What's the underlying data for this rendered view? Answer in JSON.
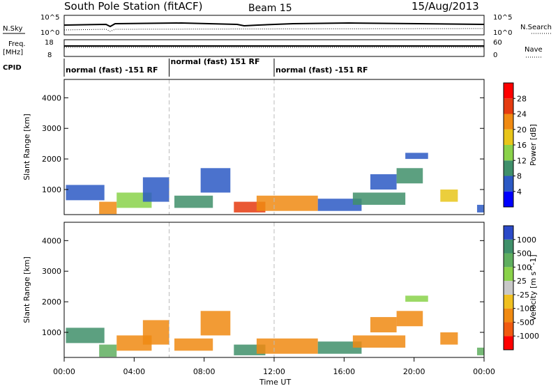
{
  "header": {
    "station": "South Pole Station (fitACF)",
    "beam": "Beam 15",
    "date": "15/Aug/2013"
  },
  "top_panel": {
    "left_label_top": "N.Sky",
    "left_label_bottom": "Freq.",
    "left_unit": "[MHz]",
    "left_ticks_sky": [
      "10^5",
      "10^0"
    ],
    "left_ticks_freq": [
      "18",
      "8"
    ],
    "right_ticks_search": [
      "10^5",
      "10^0"
    ],
    "right_ticks_nave": [
      "60",
      "0"
    ],
    "right_label_search": "N.Search",
    "right_label_nave": "Nave",
    "cpid_label": "CPID",
    "cpid_segments": [
      {
        "label": "normal (fast) -151 RF",
        "start_hour": 0,
        "end_hour": 6
      },
      {
        "label": "normal (fast) 151 RF",
        "start_hour": 6,
        "end_hour": 12
      },
      {
        "label": "normal (fast) -151 RF",
        "start_hour": 12,
        "end_hour": 24
      }
    ]
  },
  "x_axis": {
    "label": "Time UT",
    "ticks": [
      "00:00",
      "04:00",
      "08:00",
      "12:00",
      "16:00",
      "20:00",
      "00:00"
    ]
  },
  "chart_data": [
    {
      "type": "heatmap",
      "name": "power",
      "ylabel": "Slant Range [km]",
      "yticks": [
        1000,
        2000,
        3000,
        4000
      ],
      "ylim": [
        180,
        4600
      ],
      "xlim_hours": [
        0,
        24
      ],
      "colorbar_label": "Power [dB]",
      "colorbar_ticks": [
        "4",
        "8",
        "12",
        "16",
        "20",
        "24",
        "28"
      ],
      "colors": [
        "#0000ff",
        "#2c59c4",
        "#3f8f6a",
        "#8ad24a",
        "#e8c51a",
        "#f08a12",
        "#e53b10",
        "#ff0000"
      ],
      "regions": [
        {
          "x0": 0.1,
          "x1": 2.3,
          "y0": 650,
          "y1": 1150,
          "level": 1
        },
        {
          "x0": 2.0,
          "x1": 3.0,
          "y0": 200,
          "y1": 600,
          "level": 5
        },
        {
          "x0": 3.0,
          "x1": 5.0,
          "y0": 400,
          "y1": 900,
          "level": 3
        },
        {
          "x0": 4.5,
          "x1": 6.0,
          "y0": 600,
          "y1": 1400,
          "level": 1
        },
        {
          "x0": 6.3,
          "x1": 8.5,
          "y0": 400,
          "y1": 800,
          "level": 2
        },
        {
          "x0": 7.8,
          "x1": 9.5,
          "y0": 900,
          "y1": 1700,
          "level": 1
        },
        {
          "x0": 9.7,
          "x1": 11.5,
          "y0": 250,
          "y1": 600,
          "level": 6
        },
        {
          "x0": 11.0,
          "x1": 14.5,
          "y0": 300,
          "y1": 800,
          "level": 5
        },
        {
          "x0": 14.5,
          "x1": 17.0,
          "y0": 300,
          "y1": 700,
          "level": 1
        },
        {
          "x0": 16.5,
          "x1": 19.5,
          "y0": 500,
          "y1": 900,
          "level": 2
        },
        {
          "x0": 17.5,
          "x1": 19.0,
          "y0": 1000,
          "y1": 1500,
          "level": 1
        },
        {
          "x0": 19.0,
          "x1": 20.5,
          "y0": 1200,
          "y1": 1700,
          "level": 2
        },
        {
          "x0": 19.5,
          "x1": 20.8,
          "y0": 2000,
          "y1": 2200,
          "level": 1
        },
        {
          "x0": 21.5,
          "x1": 22.5,
          "y0": 600,
          "y1": 1000,
          "level": 4
        },
        {
          "x0": 23.6,
          "x1": 24.0,
          "y0": 250,
          "y1": 500,
          "level": 1
        }
      ]
    },
    {
      "type": "heatmap",
      "name": "velocity",
      "ylabel": "Slant Range [km]",
      "yticks": [
        1000,
        2000,
        3000,
        4000
      ],
      "ylim": [
        180,
        4600
      ],
      "xlim_hours": [
        0,
        24
      ],
      "colorbar_label": "Velocity [m s^-1]",
      "colorbar_ticks": [
        "1000",
        "500",
        "100",
        "25",
        "-25",
        "-100",
        "-500",
        "-1000"
      ],
      "colors": [
        "#2b4ac8",
        "#3f8f6a",
        "#5fae5f",
        "#8ad24a",
        "#c8c8c8",
        "#f0c020",
        "#f08a12",
        "#f05a10",
        "#ff0000"
      ],
      "regions": [
        {
          "x0": 0.1,
          "x1": 2.3,
          "y0": 650,
          "y1": 1150,
          "level": 1
        },
        {
          "x0": 2.0,
          "x1": 3.0,
          "y0": 200,
          "y1": 600,
          "level": 2
        },
        {
          "x0": 3.0,
          "x1": 5.0,
          "y0": 400,
          "y1": 900,
          "level": 6
        },
        {
          "x0": 4.5,
          "x1": 6.0,
          "y0": 600,
          "y1": 1400,
          "level": 6
        },
        {
          "x0": 6.3,
          "x1": 8.5,
          "y0": 400,
          "y1": 800,
          "level": 6
        },
        {
          "x0": 7.8,
          "x1": 9.5,
          "y0": 900,
          "y1": 1700,
          "level": 6
        },
        {
          "x0": 9.7,
          "x1": 11.5,
          "y0": 250,
          "y1": 600,
          "level": 1
        },
        {
          "x0": 11.0,
          "x1": 14.5,
          "y0": 300,
          "y1": 800,
          "level": 6
        },
        {
          "x0": 14.5,
          "x1": 17.0,
          "y0": 300,
          "y1": 700,
          "level": 1
        },
        {
          "x0": 16.5,
          "x1": 19.5,
          "y0": 500,
          "y1": 900,
          "level": 6
        },
        {
          "x0": 17.5,
          "x1": 19.0,
          "y0": 1000,
          "y1": 1500,
          "level": 6
        },
        {
          "x0": 19.0,
          "x1": 20.5,
          "y0": 1200,
          "y1": 1700,
          "level": 6
        },
        {
          "x0": 19.5,
          "x1": 20.8,
          "y0": 2000,
          "y1": 2200,
          "level": 3
        },
        {
          "x0": 21.5,
          "x1": 22.5,
          "y0": 600,
          "y1": 1000,
          "level": 6
        },
        {
          "x0": 23.6,
          "x1": 24.0,
          "y0": 250,
          "y1": 500,
          "level": 2
        }
      ]
    }
  ]
}
